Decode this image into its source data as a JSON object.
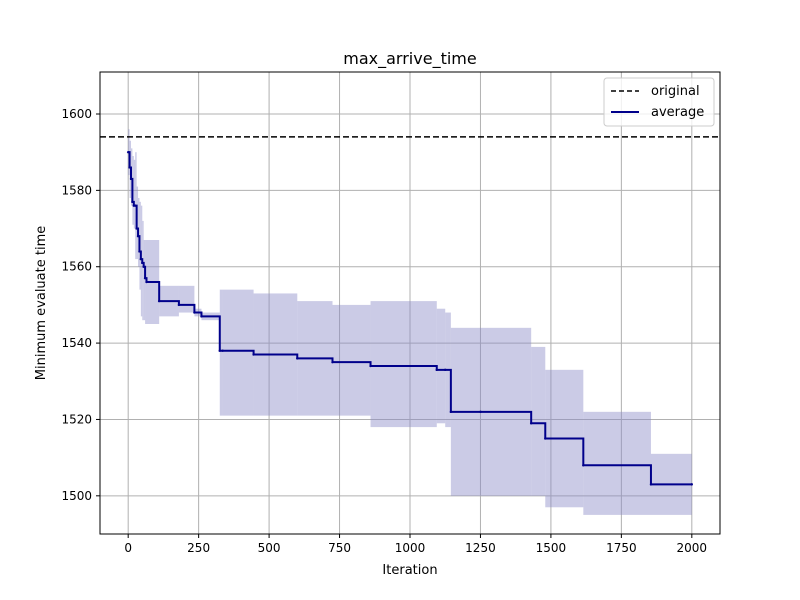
{
  "chart_data": {
    "type": "line",
    "title": "max_arrive_time",
    "xlabel": "Iteration",
    "ylabel": "Minimum evaluate time",
    "xlim": [
      -100,
      2100
    ],
    "ylim": [
      1490,
      1611
    ],
    "xticks": [
      0,
      250,
      500,
      750,
      1000,
      1250,
      1500,
      1750,
      2000
    ],
    "yticks": [
      1500,
      1520,
      1540,
      1560,
      1580,
      1600
    ],
    "grid": true,
    "legend_position": "top-right",
    "reference_line": {
      "name": "original",
      "y": 1594,
      "color": "#000000",
      "style": "dashed"
    },
    "series": [
      {
        "name": "average",
        "color": "#00008b",
        "band_color": "#8c8cc8",
        "points": [
          [
            0,
            1590,
            1584,
            1596
          ],
          [
            5,
            1586,
            1578,
            1593
          ],
          [
            10,
            1583,
            1576,
            1591
          ],
          [
            15,
            1577,
            1571,
            1589
          ],
          [
            20,
            1576,
            1570,
            1588
          ],
          [
            25,
            1576,
            1562,
            1590
          ],
          [
            30,
            1570,
            1562,
            1581
          ],
          [
            35,
            1568,
            1560,
            1578
          ],
          [
            40,
            1564,
            1554,
            1577
          ],
          [
            45,
            1562,
            1547,
            1576
          ],
          [
            50,
            1561,
            1546,
            1572
          ],
          [
            55,
            1560,
            1546,
            1567
          ],
          [
            60,
            1557,
            1545,
            1567
          ],
          [
            65,
            1556,
            1545,
            1567
          ],
          [
            110,
            1551,
            1547,
            1555
          ],
          [
            180,
            1550,
            1548,
            1555
          ],
          [
            235,
            1548,
            1547,
            1549
          ],
          [
            260,
            1547,
            1546,
            1548
          ],
          [
            325,
            1538,
            1521,
            1554
          ],
          [
            335,
            1538,
            1521,
            1554
          ],
          [
            445,
            1537,
            1521,
            1553
          ],
          [
            600,
            1536,
            1521,
            1551
          ],
          [
            725,
            1535,
            1521,
            1550
          ],
          [
            860,
            1534,
            1518,
            1551
          ],
          [
            1095,
            1533,
            1519,
            1549
          ],
          [
            1125,
            1533,
            1518,
            1548
          ],
          [
            1145,
            1522,
            1500,
            1544
          ],
          [
            1250,
            1522,
            1500,
            1544
          ],
          [
            1430,
            1519,
            1500,
            1539
          ],
          [
            1480,
            1515,
            1497,
            1533
          ],
          [
            1615,
            1508,
            1495,
            1522
          ],
          [
            1855,
            1503,
            1495,
            1511
          ],
          [
            2000,
            1503,
            1495,
            1511
          ]
        ]
      }
    ]
  }
}
